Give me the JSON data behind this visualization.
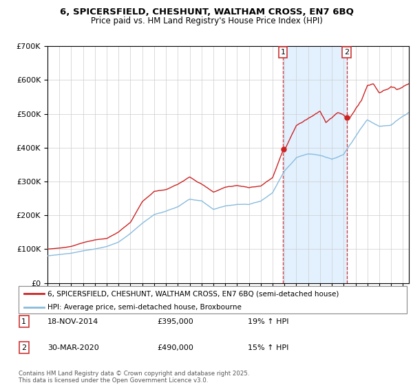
{
  "title_line1": "6, SPICERSFIELD, CHESHUNT, WALTHAM CROSS, EN7 6BQ",
  "title_line2": "Price paid vs. HM Land Registry's House Price Index (HPI)",
  "legend_label1": "6, SPICERSFIELD, CHESHUNT, WALTHAM CROSS, EN7 6BQ (semi-detached house)",
  "legend_label2": "HPI: Average price, semi-detached house, Broxbourne",
  "footnote": "Contains HM Land Registry data © Crown copyright and database right 2025.\nThis data is licensed under the Open Government Licence v3.0.",
  "line1_color": "#cc2222",
  "line2_color": "#88bbdd",
  "shaded_color": "#ddeeff",
  "marker1_date": 2014.88,
  "marker1_price": 395000,
  "marker1_label": "18-NOV-2014",
  "marker1_pct": "19% ↑ HPI",
  "marker2_date": 2020.25,
  "marker2_price": 490000,
  "marker2_label": "30-MAR-2020",
  "marker2_pct": "15% ↑ HPI",
  "ylim": [
    0,
    700000
  ],
  "xlim_start": 1995,
  "xlim_end": 2025.5,
  "background_color": "#ffffff",
  "grid_color": "#cccccc"
}
